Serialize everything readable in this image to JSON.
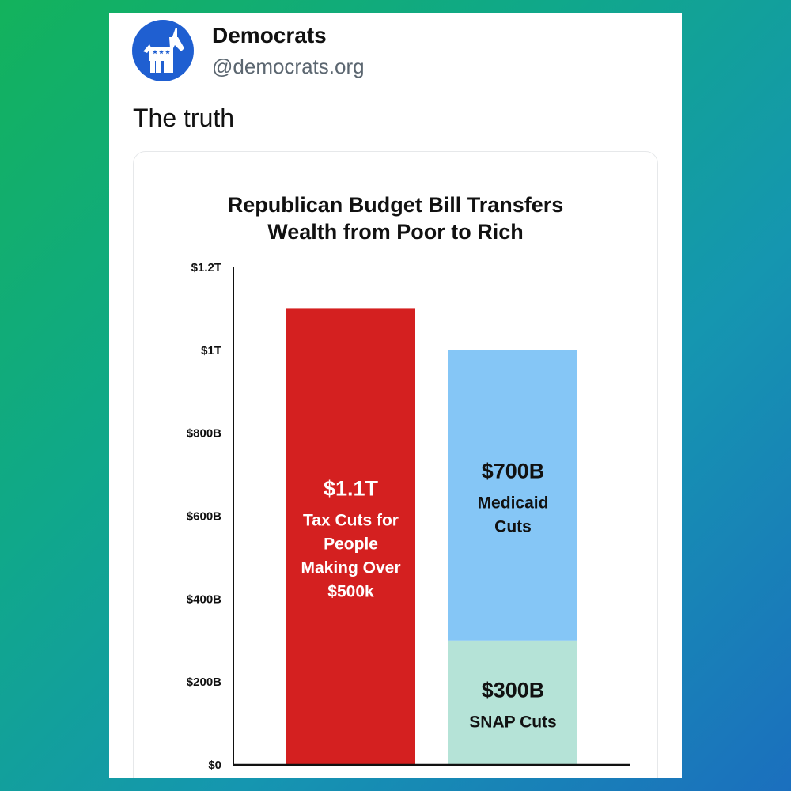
{
  "post": {
    "account_name": "Democrats",
    "handle": "@democrats.org",
    "text": "The truth",
    "avatar_icon": "donkey-icon",
    "avatar_color": "#1f5fd1"
  },
  "chart_data": {
    "type": "bar",
    "stacked": true,
    "title_lines": [
      "Republican Budget Bill Transfers",
      "Wealth from Poor to Rich"
    ],
    "unit": "billions USD",
    "ylim": [
      0,
      1200
    ],
    "y_ticks": [
      {
        "value": 0,
        "label": "$0"
      },
      {
        "value": 200,
        "label": "$200B"
      },
      {
        "value": 400,
        "label": "$400B"
      },
      {
        "value": 600,
        "label": "$600B"
      },
      {
        "value": 800,
        "label": "$800B"
      },
      {
        "value": 1000,
        "label": "$1T"
      },
      {
        "value": 1200,
        "label": "$1.2T"
      }
    ],
    "bars": [
      {
        "name": "tax-cuts",
        "segments": [
          {
            "value": 1100,
            "color": "#d42020",
            "text_color": "#ffffff",
            "value_label": "$1.1T",
            "desc_lines": [
              "Tax Cuts for",
              "People",
              "Making Over",
              "$500k"
            ]
          }
        ]
      },
      {
        "name": "safety-net-cuts",
        "segments": [
          {
            "value": 300,
            "color": "#b5e3d7",
            "text_color": "#111111",
            "value_label": "$300B",
            "desc_lines": [
              "SNAP Cuts"
            ]
          },
          {
            "value": 700,
            "color": "#85c6f6",
            "text_color": "#111111",
            "value_label": "$700B",
            "desc_lines": [
              "Medicaid",
              "Cuts"
            ]
          }
        ]
      }
    ]
  }
}
